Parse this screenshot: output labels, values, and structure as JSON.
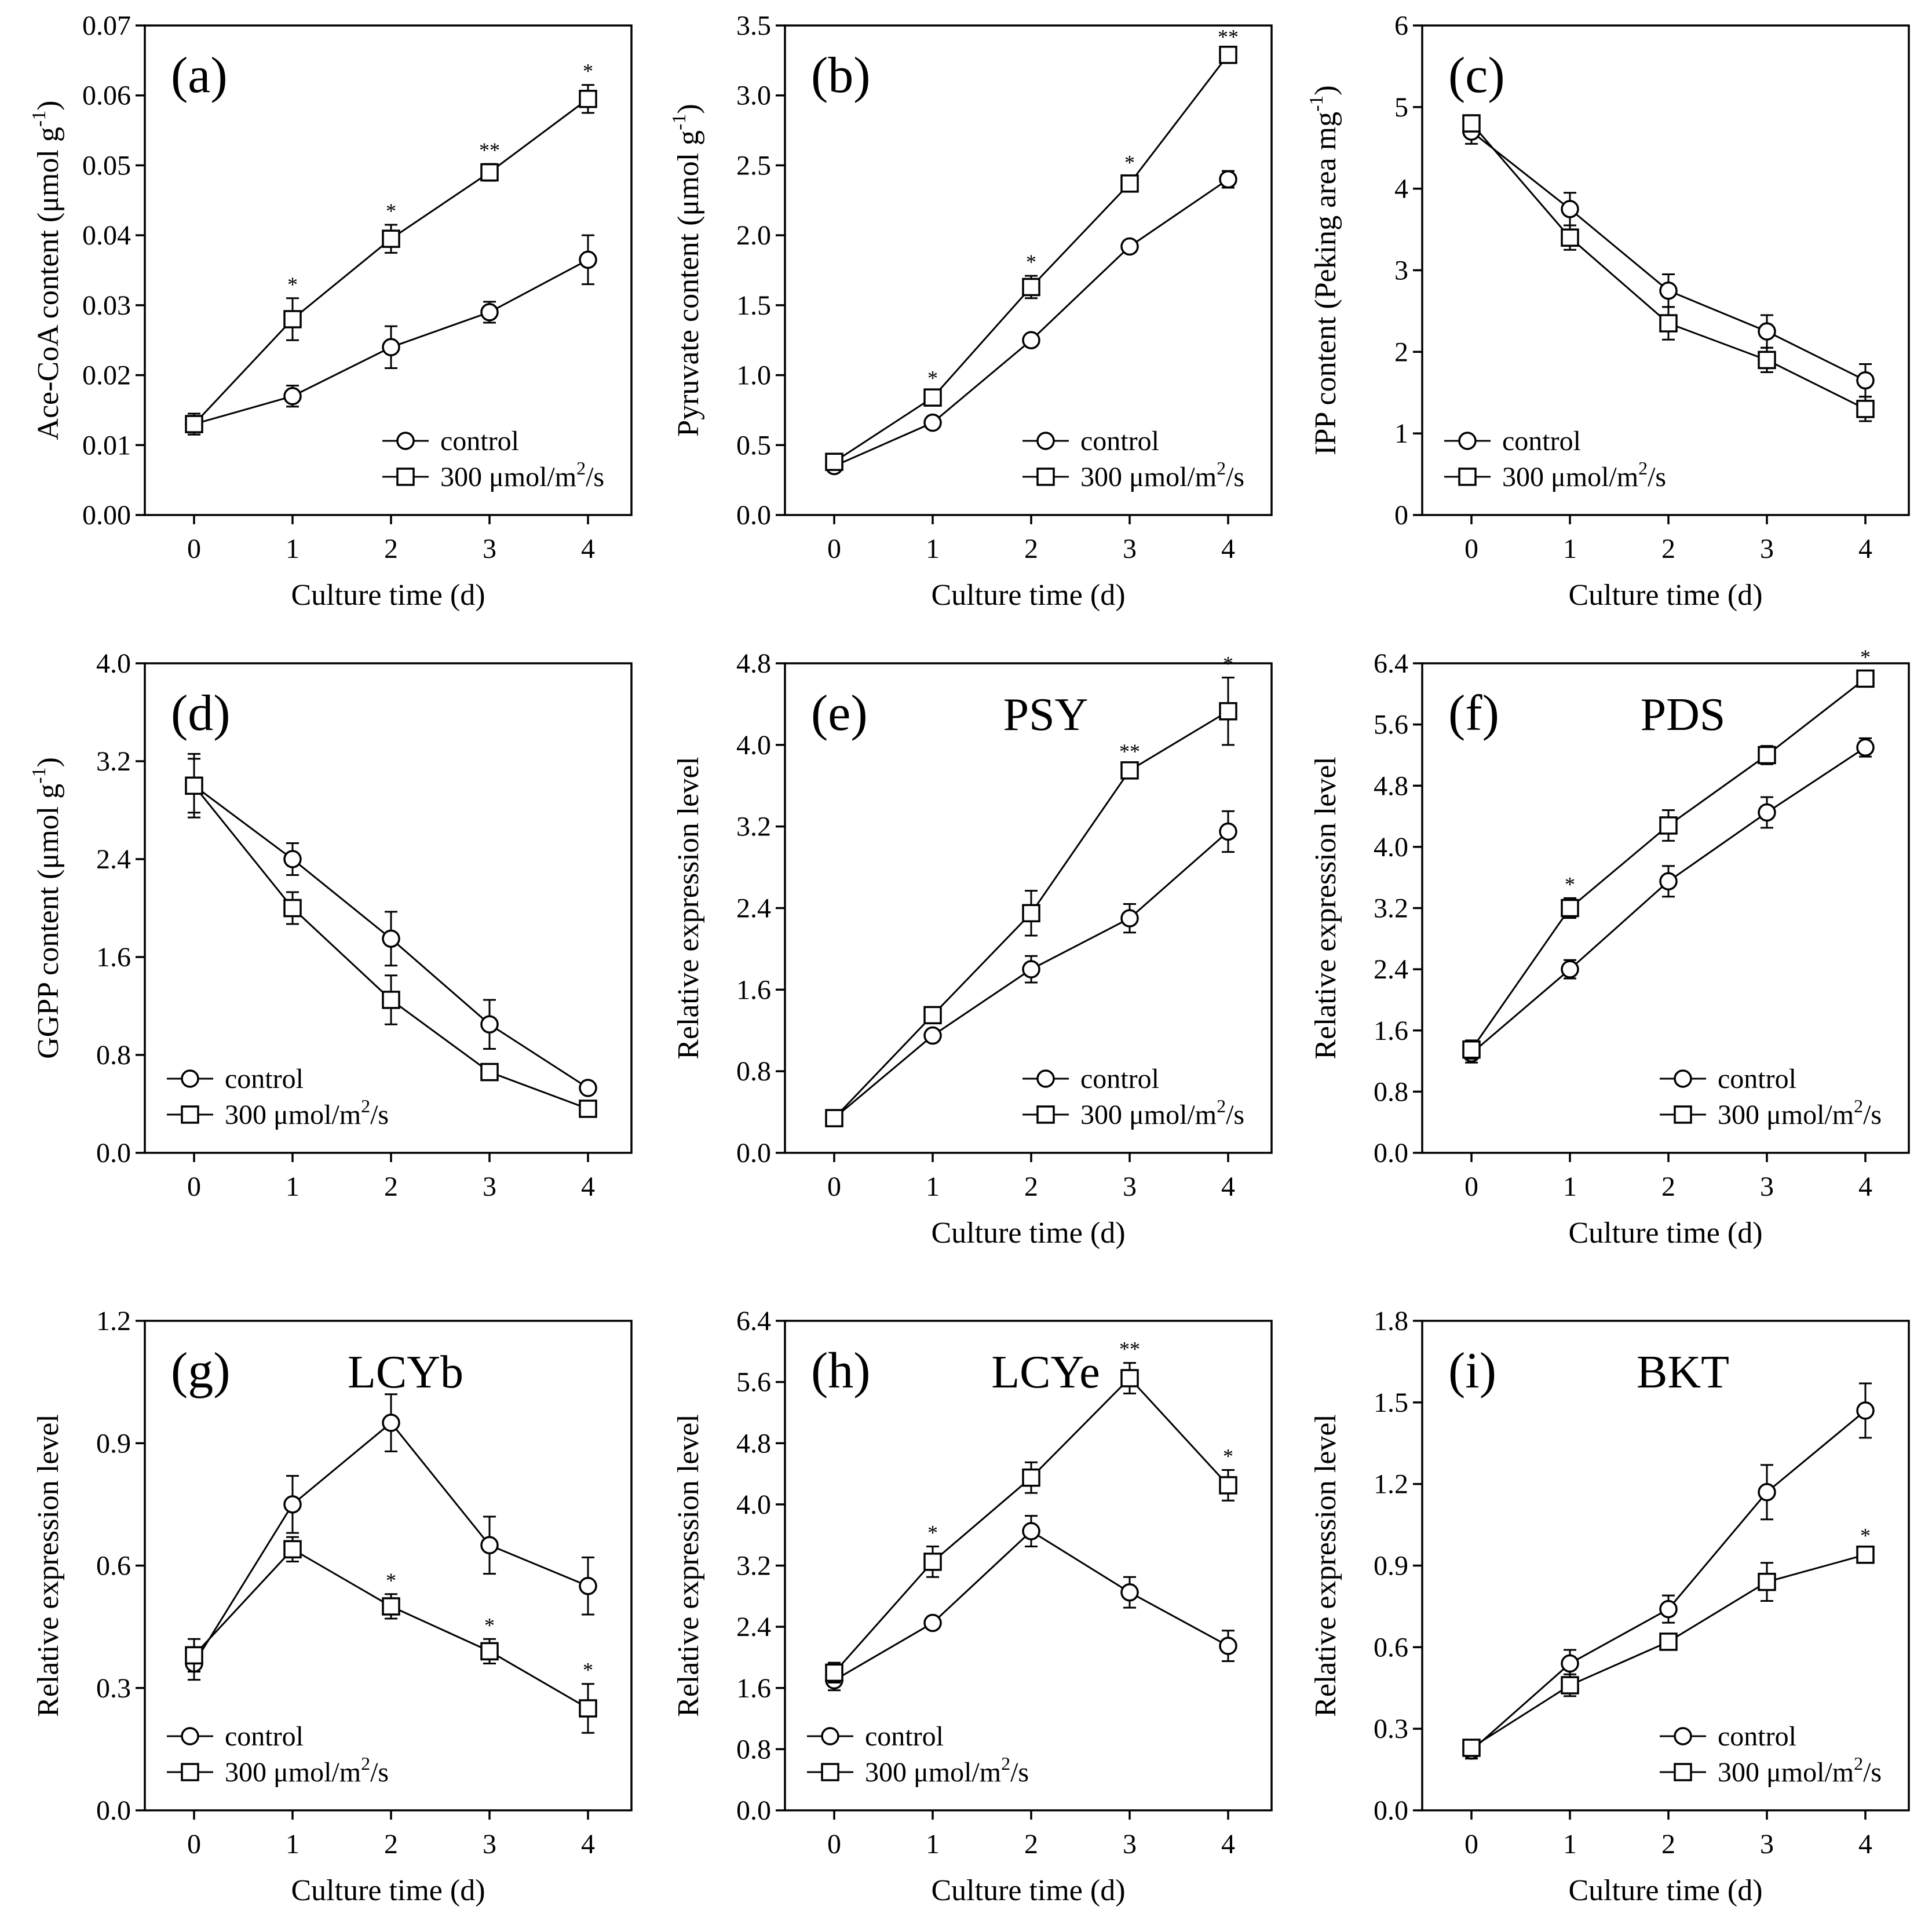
{
  "chart_data": [
    {
      "type": "line",
      "panel_label": "(a)",
      "gene": "",
      "xlabel": "Culture time (d)",
      "ylabel": "Ace-CoA content (μmol g",
      "ylabel_sup": "-1",
      "ylabel_suffix": ")",
      "ylim": [
        0,
        0.07
      ],
      "yticks": [
        "0.00",
        "0.01",
        "0.02",
        "0.03",
        "0.04",
        "0.05",
        "0.06",
        "0.07"
      ],
      "x": [
        0,
        1,
        2,
        3,
        4
      ],
      "xticks": [
        "0",
        "1",
        "2",
        "3",
        "4"
      ],
      "series": [
        {
          "name": "control",
          "marker": "circle",
          "values": [
            0.013,
            0.017,
            0.024,
            0.029,
            0.0365
          ],
          "errors": [
            0.0015,
            0.0015,
            0.003,
            0.0015,
            0.0035
          ]
        },
        {
          "name": "300 μmol/m2/s",
          "marker": "square",
          "values": [
            0.013,
            0.028,
            0.0395,
            0.049,
            0.0595
          ],
          "errors": [
            0.0015,
            0.003,
            0.002,
            0.0012,
            0.002
          ]
        }
      ],
      "significance": [
        "",
        "*",
        "*",
        "**",
        "*"
      ],
      "legend": {
        "position": "bottom-right",
        "labels": [
          "control",
          "300 μmol/m",
          "2",
          "/s"
        ]
      }
    },
    {
      "type": "line",
      "panel_label": "(b)",
      "gene": "",
      "xlabel": "Culture time (d)",
      "ylabel": "Pyruvate content (μmol g",
      "ylabel_sup": "-1",
      "ylabel_suffix": ")",
      "ylim": [
        0,
        3.5
      ],
      "yticks": [
        "0.0",
        "0.5",
        "1.0",
        "1.5",
        "2.0",
        "2.5",
        "3.0",
        "3.5"
      ],
      "x": [
        0,
        1,
        2,
        3,
        4
      ],
      "xticks": [
        "0",
        "1",
        "2",
        "3",
        "4"
      ],
      "series": [
        {
          "name": "control",
          "marker": "circle",
          "values": [
            0.35,
            0.66,
            1.25,
            1.92,
            2.4
          ],
          "errors": [
            0.02,
            0.02,
            0.02,
            0.04,
            0.06
          ]
        },
        {
          "name": "300 μmol/m2/s",
          "marker": "square",
          "values": [
            0.38,
            0.84,
            1.63,
            2.37,
            3.29
          ],
          "errors": [
            0.03,
            0.04,
            0.08,
            0.05,
            0.03
          ]
        }
      ],
      "significance": [
        "",
        "*",
        "*",
        "*",
        "**"
      ],
      "legend": {
        "position": "bottom-right",
        "labels": [
          "control",
          "300 μmol/m",
          "2",
          "/s"
        ]
      }
    },
    {
      "type": "line",
      "panel_label": "(c)",
      "gene": "",
      "xlabel": "Culture time (d)",
      "ylabel": "IPP content (Peking area mg",
      "ylabel_sup": "-1",
      "ylabel_suffix": ")",
      "ylim": [
        0,
        6
      ],
      "yticks": [
        "0",
        "1",
        "2",
        "3",
        "4",
        "5",
        "6"
      ],
      "x": [
        0,
        1,
        2,
        3,
        4
      ],
      "xticks": [
        "0",
        "1",
        "2",
        "3",
        "4"
      ],
      "series": [
        {
          "name": "control",
          "marker": "circle",
          "values": [
            4.7,
            3.75,
            2.75,
            2.25,
            1.65
          ],
          "errors": [
            0.15,
            0.2,
            0.2,
            0.2,
            0.2
          ]
        },
        {
          "name": "300 μmol/m2/s",
          "marker": "square",
          "values": [
            4.8,
            3.4,
            2.35,
            1.9,
            1.3
          ],
          "errors": [
            0.1,
            0.15,
            0.2,
            0.15,
            0.15
          ]
        }
      ],
      "significance": [
        "",
        "",
        "",
        "",
        ""
      ],
      "legend": {
        "position": "bottom-left",
        "labels": [
          "control",
          "300 μmol/m",
          "2",
          "/s"
        ]
      }
    },
    {
      "type": "line",
      "panel_label": "(d)",
      "gene": "",
      "xlabel": "",
      "ylabel": "GGPP content (μmol g",
      "ylabel_sup": "-1",
      "ylabel_suffix": ")",
      "ylim": [
        0,
        4.0
      ],
      "yticks": [
        "0.0",
        "0.8",
        "1.6",
        "2.4",
        "3.2",
        "4.0"
      ],
      "x": [
        0,
        1,
        2,
        3,
        4
      ],
      "xticks": [
        "0",
        "1",
        "2",
        "3",
        "4"
      ],
      "series": [
        {
          "name": "control",
          "marker": "circle",
          "values": [
            3.0,
            2.4,
            1.75,
            1.05,
            0.53
          ],
          "errors": [
            0.26,
            0.13,
            0.22,
            0.2,
            0.04
          ]
        },
        {
          "name": "300 μmol/m2/s",
          "marker": "square",
          "values": [
            3.0,
            2.0,
            1.25,
            0.66,
            0.36
          ],
          "errors": [
            0.22,
            0.13,
            0.2,
            0.06,
            0.06
          ]
        }
      ],
      "significance": [
        "",
        "",
        "",
        "",
        ""
      ],
      "legend": {
        "position": "bottom-left",
        "labels": [
          "control",
          "300 μmol/m",
          "2",
          "/s"
        ]
      }
    },
    {
      "type": "line",
      "panel_label": "(e)",
      "gene": "PSY",
      "xlabel": "Culture time (d)",
      "ylabel": "Relative expression level",
      "ylabel_sup": "",
      "ylabel_suffix": "",
      "ylim": [
        0,
        4.8
      ],
      "yticks": [
        "0.0",
        "0.8",
        "1.6",
        "2.4",
        "3.2",
        "4.0",
        "4.8"
      ],
      "x": [
        0,
        1,
        2,
        3,
        4
      ],
      "xticks": [
        "0",
        "1",
        "2",
        "3",
        "4"
      ],
      "series": [
        {
          "name": "control",
          "marker": "circle",
          "values": [
            0.34,
            1.15,
            1.8,
            2.3,
            3.15
          ],
          "errors": [
            0.05,
            0.05,
            0.13,
            0.14,
            0.2
          ]
        },
        {
          "name": "300 μmol/m2/s",
          "marker": "square",
          "values": [
            0.34,
            1.35,
            2.35,
            3.75,
            4.33
          ],
          "errors": [
            0.04,
            0.05,
            0.22,
            0.05,
            0.33
          ]
        }
      ],
      "significance": [
        "",
        "",
        "",
        "**",
        "*"
      ],
      "legend": {
        "position": "bottom-right",
        "labels": [
          "control",
          "300 μmol/m",
          "2",
          "/s"
        ]
      }
    },
    {
      "type": "line",
      "panel_label": "(f)",
      "gene": "PDS",
      "xlabel": "Culture time (d)",
      "ylabel": "Relative expression level",
      "ylabel_sup": "",
      "ylabel_suffix": "",
      "ylim": [
        0,
        6.4
      ],
      "yticks": [
        "0.0",
        "0.8",
        "1.6",
        "2.4",
        "3.2",
        "4.0",
        "4.8",
        "5.6",
        "6.4"
      ],
      "x": [
        0,
        1,
        2,
        3,
        4
      ],
      "xticks": [
        "0",
        "1",
        "2",
        "3",
        "4"
      ],
      "series": [
        {
          "name": "control",
          "marker": "circle",
          "values": [
            1.3,
            2.4,
            3.55,
            4.45,
            5.3
          ],
          "errors": [
            0.12,
            0.12,
            0.2,
            0.2,
            0.12
          ]
        },
        {
          "name": "300 μmol/m2/s",
          "marker": "square",
          "values": [
            1.35,
            3.2,
            4.28,
            5.2,
            6.2
          ],
          "errors": [
            0.12,
            0.13,
            0.2,
            0.12,
            0.1
          ]
        }
      ],
      "significance": [
        "",
        "*",
        "",
        "",
        "*"
      ],
      "legend": {
        "position": "bottom-right",
        "labels": [
          "control",
          "300 μmol/m",
          "2",
          "/s"
        ]
      }
    },
    {
      "type": "line",
      "panel_label": "(g)",
      "gene": "LCYb",
      "xlabel": "Culture time (d)",
      "ylabel": "Relative expression level",
      "ylabel_sup": "",
      "ylabel_suffix": "",
      "ylim": [
        0,
        1.2
      ],
      "yticks": [
        "0.0",
        "0.3",
        "0.6",
        "0.9",
        "1.2"
      ],
      "x": [
        0,
        1,
        2,
        3,
        4
      ],
      "xticks": [
        "0",
        "1",
        "2",
        "3",
        "4"
      ],
      "series": [
        {
          "name": "control",
          "marker": "circle",
          "values": [
            0.36,
            0.75,
            0.95,
            0.65,
            0.55
          ],
          "errors": [
            0.04,
            0.07,
            0.07,
            0.07,
            0.07
          ]
        },
        {
          "name": "300 μmol/m2/s",
          "marker": "square",
          "values": [
            0.38,
            0.64,
            0.5,
            0.39,
            0.25
          ],
          "errors": [
            0.04,
            0.03,
            0.03,
            0.03,
            0.06
          ]
        }
      ],
      "significance": [
        "",
        "",
        "*",
        "*",
        "*"
      ],
      "legend": {
        "position": "bottom-left",
        "labels": [
          "control",
          "300 μmol/m",
          "2",
          "/s"
        ]
      }
    },
    {
      "type": "line",
      "panel_label": "(h)",
      "gene": "LCYe",
      "xlabel": "Culture time (d)",
      "ylabel": "Relative expression level",
      "ylabel_sup": "",
      "ylabel_suffix": "",
      "ylim": [
        0,
        6.4
      ],
      "yticks": [
        "0.0",
        "0.8",
        "1.6",
        "2.4",
        "3.2",
        "4.0",
        "4.8",
        "5.6",
        "6.4"
      ],
      "x": [
        0,
        1,
        2,
        3,
        4
      ],
      "xticks": [
        "0",
        "1",
        "2",
        "3",
        "4"
      ],
      "series": [
        {
          "name": "control",
          "marker": "circle",
          "values": [
            1.7,
            2.45,
            3.65,
            2.85,
            2.15
          ],
          "errors": [
            0.13,
            0.05,
            0.2,
            0.2,
            0.2
          ]
        },
        {
          "name": "300 μmol/m2/s",
          "marker": "square",
          "values": [
            1.8,
            3.25,
            4.35,
            5.65,
            4.25
          ],
          "errors": [
            0.13,
            0.2,
            0.2,
            0.2,
            0.2
          ]
        }
      ],
      "significance": [
        "",
        "*",
        "",
        "**",
        "*"
      ],
      "legend": {
        "position": "bottom-left",
        "labels": [
          "control",
          "300 μmol/m",
          "2",
          "/s"
        ]
      }
    },
    {
      "type": "line",
      "panel_label": "(i)",
      "gene": "BKT",
      "xlabel": "Culture time (d)",
      "ylabel": "Relative expression level",
      "ylabel_sup": "",
      "ylabel_suffix": "",
      "ylim": [
        0,
        1.8
      ],
      "yticks": [
        "0.0",
        "0.3",
        "0.6",
        "0.9",
        "1.2",
        "1.5",
        "1.8"
      ],
      "x": [
        0,
        1,
        2,
        3,
        4
      ],
      "xticks": [
        "0",
        "1",
        "2",
        "3",
        "4"
      ],
      "series": [
        {
          "name": "control",
          "marker": "circle",
          "values": [
            0.22,
            0.54,
            0.74,
            1.17,
            1.47
          ],
          "errors": [
            0.03,
            0.05,
            0.05,
            0.1,
            0.1
          ]
        },
        {
          "name": "300 μmol/m2/s",
          "marker": "square",
          "values": [
            0.23,
            0.46,
            0.62,
            0.84,
            0.94
          ],
          "errors": [
            0.03,
            0.04,
            0.01,
            0.07,
            0.02
          ]
        }
      ],
      "significance": [
        "",
        "",
        "",
        "",
        "*"
      ],
      "legend": {
        "position": "bottom-right",
        "labels": [
          "control",
          "300 μmol/m",
          "2",
          "/s"
        ]
      }
    }
  ]
}
